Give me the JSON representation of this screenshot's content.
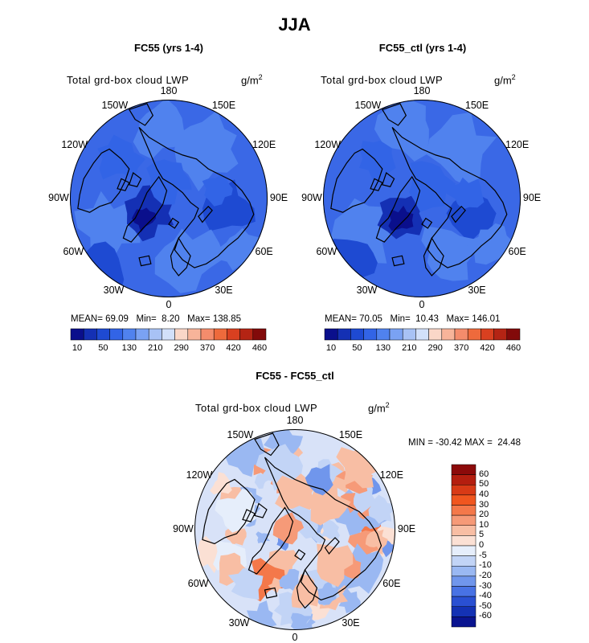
{
  "title": "JJA",
  "panels": [
    {
      "title": "FC55 (yrs 1-4)",
      "field": "Total grd-box cloud LWP",
      "units": "g/m",
      "units_sup": "2",
      "lon_labels": [
        "180",
        "150E",
        "120E",
        "90E",
        "60E",
        "30E",
        "0",
        "30W",
        "60W",
        "90W",
        "120W",
        "150W"
      ],
      "stats": {
        "mean_label": "MEAN=",
        "mean": "69.09",
        "min_label": "Min=",
        "min": "8.20",
        "max_label": "Max=",
        "max": "138.85"
      },
      "colorbar_ticks": [
        "10",
        "50",
        "130",
        "210",
        "290",
        "370",
        "420",
        "460"
      ]
    },
    {
      "title": "FC55_ctl (yrs 1-4)",
      "field": "Total grd-box cloud LWP",
      "units": "g/m",
      "units_sup": "2",
      "lon_labels": [
        "180",
        "150E",
        "120E",
        "90E",
        "60E",
        "30E",
        "0",
        "30W",
        "60W",
        "90W",
        "120W",
        "150W"
      ],
      "stats": {
        "mean_label": "MEAN=",
        "mean": "70.05",
        "min_label": "Min=",
        "min": "10.43",
        "max_label": "Max=",
        "max": "146.01"
      },
      "colorbar_ticks": [
        "10",
        "50",
        "130",
        "210",
        "290",
        "370",
        "420",
        "460"
      ]
    },
    {
      "title": "FC55 - FC55_ctl",
      "field": "Total grd-box cloud LWP",
      "units": "g/m",
      "units_sup": "2",
      "lon_labels": [
        "180",
        "150E",
        "120E",
        "90E",
        "60E",
        "30E",
        "0",
        "30W",
        "60W",
        "90W",
        "120W",
        "150W"
      ],
      "stats_line": "MIN = -30.42 MAX =  24.48",
      "colorbar_ticks": [
        "60",
        "50",
        "40",
        "30",
        "20",
        "10",
        "5",
        "0",
        "-5",
        "-10",
        "-20",
        "-30",
        "-40",
        "-50",
        "-60"
      ]
    }
  ],
  "colors": {
    "seq": [
      "#0a0f8c",
      "#1430b4",
      "#1e4ad2",
      "#3264e6",
      "#5082ee",
      "#7aa2f3",
      "#a8c2f5",
      "#d2e0fa",
      "#fad7c8",
      "#f7b49a",
      "#f48c6c",
      "#ee6a3c",
      "#d94020",
      "#b42414",
      "#820a0a"
    ],
    "diff": [
      "#8c0a0a",
      "#b41e0f",
      "#d83a16",
      "#f0561f",
      "#f4784a",
      "#f69a78",
      "#f8bea4",
      "#fbe0d4",
      "#e6eefb",
      "#c2d4f6",
      "#9ab8f2",
      "#7096ec",
      "#4872e4",
      "#2a50d2",
      "#1432b4",
      "#0a1490"
    ],
    "ocean_base": "#3a68e6",
    "diff_base": "#d8e2f8"
  },
  "chart_data": [
    {
      "type": "heatmap",
      "title": "FC55 (yrs 1-4)",
      "variable": "Total grd-box cloud LWP",
      "units": "g/m2",
      "projection": "north polar stereographic",
      "mean": 69.09,
      "min": 8.2,
      "max": 138.85,
      "contour_levels": [
        10,
        30,
        50,
        90,
        130,
        170,
        210,
        250,
        290,
        330,
        370,
        400,
        420,
        440,
        460
      ]
    },
    {
      "type": "heatmap",
      "title": "FC55_ctl (yrs 1-4)",
      "variable": "Total grd-box cloud LWP",
      "units": "g/m2",
      "projection": "north polar stereographic",
      "mean": 70.05,
      "min": 10.43,
      "max": 146.01,
      "contour_levels": [
        10,
        30,
        50,
        90,
        130,
        170,
        210,
        250,
        290,
        330,
        370,
        400,
        420,
        440,
        460
      ]
    },
    {
      "type": "heatmap",
      "title": "FC55 - FC55_ctl",
      "variable": "Total grd-box cloud LWP",
      "units": "g/m2",
      "projection": "north polar stereographic",
      "min": -30.42,
      "max": 24.48,
      "contour_levels": [
        -60,
        -50,
        -40,
        -30,
        -20,
        -10,
        -5,
        0,
        5,
        10,
        20,
        30,
        40,
        50,
        60
      ]
    }
  ]
}
